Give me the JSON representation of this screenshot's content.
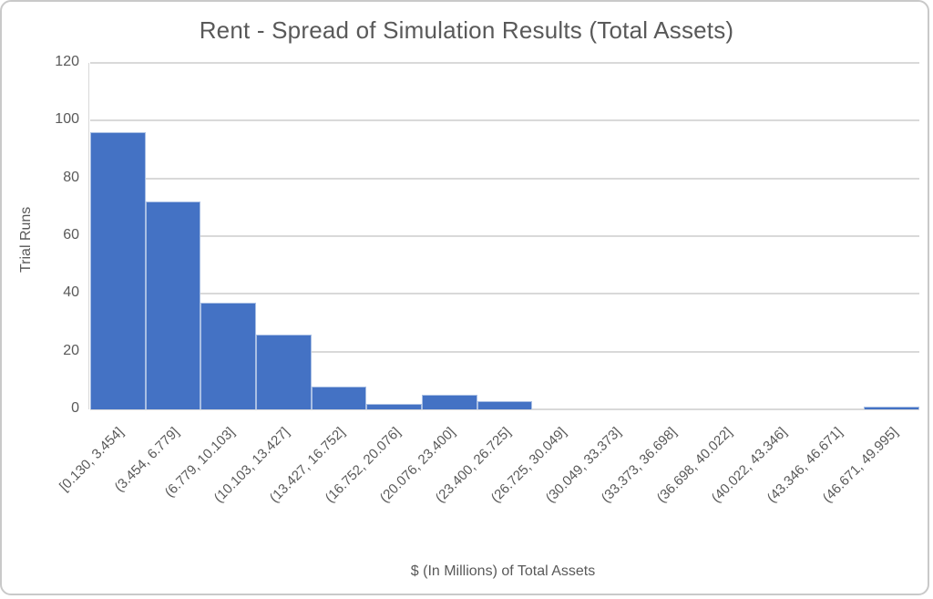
{
  "chart_data": {
    "type": "bar",
    "title": "Rent - Spread of Simulation Results (Total Assets)",
    "xlabel": "$ (In Millions) of Total Assets",
    "ylabel": "Trial Runs",
    "categories": [
      "[0.130, 3.454]",
      "(3.454, 6.779]",
      "(6.779, 10.103]",
      "(10.103, 13.427]",
      "(13.427, 16.752]",
      "(16.752, 20.076]",
      "(20.076, 23.400]",
      "(23.400, 26.725]",
      "(26.725, 30.049]",
      "(30.049, 33.373]",
      "(33.373, 36.698]",
      "(36.698, 40.022]",
      "(40.022, 43.346]",
      "(43.346, 46.671]",
      "(46.671, 49.995]"
    ],
    "values": [
      96,
      72,
      37,
      26,
      8,
      2,
      5,
      3,
      0,
      0,
      0,
      0,
      0,
      0,
      1
    ],
    "ylim": [
      0,
      120
    ],
    "yticks": [
      0,
      20,
      40,
      60,
      80,
      100,
      120
    ],
    "grid": true,
    "legend_position": "none",
    "bar_color": "#4472C4",
    "bar_border_color": "#a9bfe4",
    "gridline_color": "#d9d9d9",
    "axis_line_color": "#d9d9d9",
    "text_color": "#595959",
    "frame_border_color": "#c9c9c9"
  }
}
